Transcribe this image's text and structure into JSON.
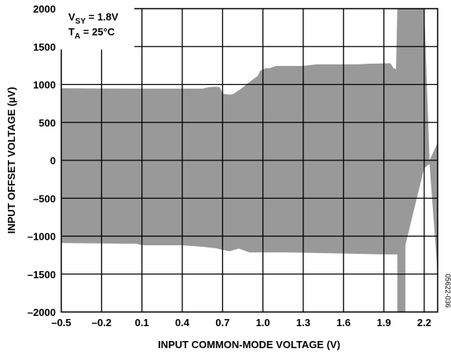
{
  "chart_data": {
    "type": "area",
    "xlabel": "INPUT COMMON-MODE VOLTAGE (V)",
    "ylabel": "INPUT OFFSET VOLTAGE (µV)",
    "xlim": [
      -0.5,
      2.3
    ],
    "ylim": [
      -2000,
      2000
    ],
    "x_ticks": [
      -0.5,
      -0.2,
      0.1,
      0.4,
      0.7,
      1.0,
      1.3,
      1.6,
      1.9,
      2.2
    ],
    "x_tick_labels": [
      "–0.5",
      "–0.2",
      "0.1",
      "0.4",
      "0.7",
      "1.0",
      "1.3",
      "1.6",
      "1.9",
      "2.2"
    ],
    "y_ticks": [
      -2000,
      -1500,
      -1000,
      -500,
      0,
      500,
      1000,
      1500,
      2000
    ],
    "y_tick_labels": [
      "–2000",
      "–1500",
      "–1000",
      "–500",
      "0",
      "500",
      "1000",
      "1500",
      "2000"
    ],
    "grid": true,
    "annotations": {
      "supply": {
        "main": "V",
        "sub": "SY",
        "rest": " = 1.8V"
      },
      "temperature": {
        "main": "T",
        "sub": "A",
        "rest": " = 25°C"
      }
    },
    "figure_id": "05622-036",
    "fill_color": "#999999",
    "series": [
      {
        "band": true,
        "upper": [
          [
            -0.5,
            950
          ],
          [
            0.0,
            945
          ],
          [
            0.3,
            945
          ],
          [
            0.55,
            945
          ],
          [
            0.6,
            965
          ],
          [
            0.65,
            970
          ],
          [
            0.68,
            960
          ],
          [
            0.7,
            880
          ],
          [
            0.75,
            865
          ],
          [
            0.78,
            875
          ],
          [
            0.85,
            960
          ],
          [
            0.92,
            1060
          ],
          [
            0.96,
            1110
          ],
          [
            0.98,
            1180
          ],
          [
            1.02,
            1215
          ],
          [
            1.05,
            1215
          ],
          [
            1.1,
            1245
          ],
          [
            1.3,
            1245
          ],
          [
            1.4,
            1265
          ],
          [
            1.7,
            1265
          ],
          [
            1.8,
            1275
          ],
          [
            1.95,
            1280
          ],
          [
            1.97,
            1220
          ],
          [
            1.99,
            1200
          ],
          [
            2.0,
            2000
          ],
          [
            2.2,
            2000
          ],
          [
            2.24,
            0
          ],
          [
            2.3,
            230
          ]
        ],
        "lower": [
          [
            -0.5,
            -1090
          ],
          [
            0.0,
            -1100
          ],
          [
            0.06,
            -1100
          ],
          [
            0.1,
            -1120
          ],
          [
            0.4,
            -1120
          ],
          [
            0.55,
            -1140
          ],
          [
            0.65,
            -1160
          ],
          [
            0.7,
            -1180
          ],
          [
            0.75,
            -1200
          ],
          [
            0.78,
            -1185
          ],
          [
            0.82,
            -1165
          ],
          [
            0.86,
            -1190
          ],
          [
            0.9,
            -1215
          ],
          [
            1.2,
            -1215
          ],
          [
            1.5,
            -1225
          ],
          [
            1.9,
            -1240
          ],
          [
            2.0,
            -1240
          ],
          [
            2.0,
            -2000
          ],
          [
            2.06,
            -2000
          ],
          [
            2.06,
            -1120
          ],
          [
            2.2,
            -100
          ],
          [
            2.24,
            -50
          ],
          [
            2.3,
            -1500
          ]
        ]
      }
    ]
  }
}
